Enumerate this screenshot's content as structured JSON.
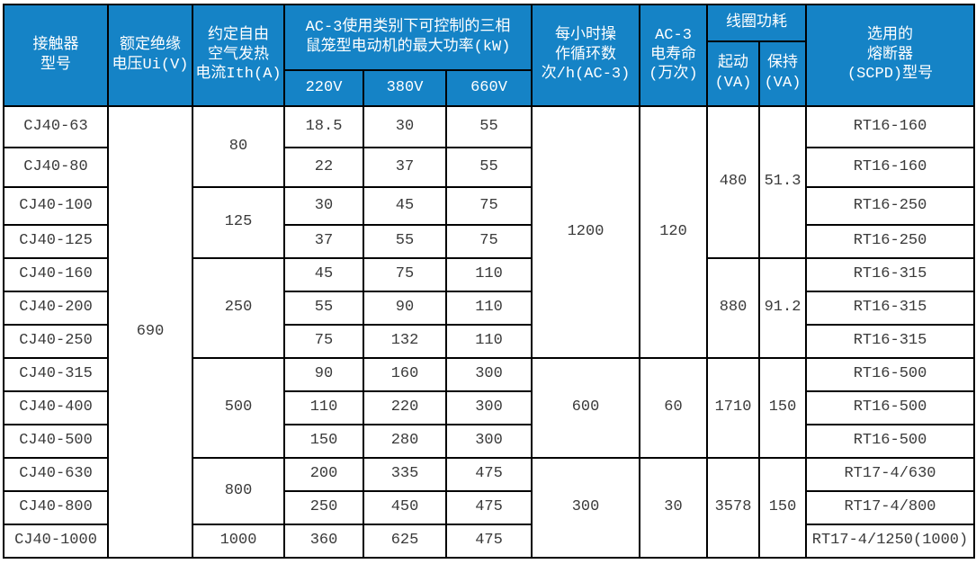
{
  "colors": {
    "header_bg": "#1583c6",
    "header_text": "#ffffff",
    "body_text": "#3a3a3a",
    "border": "#000000"
  },
  "table": {
    "group_headers": {
      "ac3_power": "AC-3使用类别下可控制的三相\n鼠笼型电动机的最大功率(kW)",
      "coil_power": "线圈功耗"
    },
    "columns": [
      {
        "id": "model",
        "header": "接触器\n型号",
        "cells": [
          {
            "value": "CJ40-63",
            "rowspan": 1
          },
          {
            "value": "CJ40-80",
            "rowspan": 1
          },
          {
            "value": "CJ40-100",
            "rowspan": 1
          },
          {
            "value": "CJ40-125",
            "rowspan": 1
          },
          {
            "value": "CJ40-160",
            "rowspan": 1
          },
          {
            "value": "CJ40-200",
            "rowspan": 1
          },
          {
            "value": "CJ40-250",
            "rowspan": 1
          },
          {
            "value": "CJ40-315",
            "rowspan": 1
          },
          {
            "value": "CJ40-400",
            "rowspan": 1
          },
          {
            "value": "CJ40-500",
            "rowspan": 1
          },
          {
            "value": "CJ40-630",
            "rowspan": 1
          },
          {
            "value": "CJ40-800",
            "rowspan": 1
          },
          {
            "value": "CJ40-1000",
            "rowspan": 1
          }
        ]
      },
      {
        "id": "insulation_voltage",
        "header": "额定绝缘\n电压Ui(V)",
        "cells": [
          {
            "value": "690",
            "rowspan": 13
          }
        ]
      },
      {
        "id": "thermal_current",
        "header": "约定自由\n空气发热\n电流Ith(A)",
        "cells": [
          {
            "value": "80",
            "rowspan": 2
          },
          {
            "value": "125",
            "rowspan": 2
          },
          {
            "value": "250",
            "rowspan": 3
          },
          {
            "value": "500",
            "rowspan": 3
          },
          {
            "value": "800",
            "rowspan": 2
          },
          {
            "value": "1000",
            "rowspan": 1
          }
        ]
      },
      {
        "id": "p220",
        "header": "220V",
        "cells": [
          {
            "value": "18.5",
            "rowspan": 1
          },
          {
            "value": "22",
            "rowspan": 1
          },
          {
            "value": "30",
            "rowspan": 1
          },
          {
            "value": "37",
            "rowspan": 1
          },
          {
            "value": "45",
            "rowspan": 1
          },
          {
            "value": "55",
            "rowspan": 1
          },
          {
            "value": "75",
            "rowspan": 1
          },
          {
            "value": "90",
            "rowspan": 1
          },
          {
            "value": "110",
            "rowspan": 1
          },
          {
            "value": "150",
            "rowspan": 1
          },
          {
            "value": "200",
            "rowspan": 1
          },
          {
            "value": "250",
            "rowspan": 1
          },
          {
            "value": "360",
            "rowspan": 1
          }
        ]
      },
      {
        "id": "p380",
        "header": "380V",
        "cells": [
          {
            "value": "30",
            "rowspan": 1
          },
          {
            "value": "37",
            "rowspan": 1
          },
          {
            "value": "45",
            "rowspan": 1
          },
          {
            "value": "55",
            "rowspan": 1
          },
          {
            "value": "75",
            "rowspan": 1
          },
          {
            "value": "90",
            "rowspan": 1
          },
          {
            "value": "132",
            "rowspan": 1
          },
          {
            "value": "160",
            "rowspan": 1
          },
          {
            "value": "220",
            "rowspan": 1
          },
          {
            "value": "280",
            "rowspan": 1
          },
          {
            "value": "335",
            "rowspan": 1
          },
          {
            "value": "450",
            "rowspan": 1
          },
          {
            "value": "625",
            "rowspan": 1
          }
        ]
      },
      {
        "id": "p660",
        "header": "660V",
        "cells": [
          {
            "value": "55",
            "rowspan": 1
          },
          {
            "value": "55",
            "rowspan": 1
          },
          {
            "value": "75",
            "rowspan": 1
          },
          {
            "value": "75",
            "rowspan": 1
          },
          {
            "value": "110",
            "rowspan": 1
          },
          {
            "value": "110",
            "rowspan": 1
          },
          {
            "value": "110",
            "rowspan": 1
          },
          {
            "value": "300",
            "rowspan": 1
          },
          {
            "value": "300",
            "rowspan": 1
          },
          {
            "value": "300",
            "rowspan": 1
          },
          {
            "value": "475",
            "rowspan": 1
          },
          {
            "value": "475",
            "rowspan": 1
          },
          {
            "value": "475",
            "rowspan": 1
          }
        ]
      },
      {
        "id": "cycles",
        "header": "每小时操\n作循环数\n次/h(AC-3)",
        "cells": [
          {
            "value": "1200",
            "rowspan": 7
          },
          {
            "value": "600",
            "rowspan": 3
          },
          {
            "value": "300",
            "rowspan": 3
          }
        ]
      },
      {
        "id": "life",
        "header": "AC-3\n电寿命\n(万次)",
        "cells": [
          {
            "value": "120",
            "rowspan": 7
          },
          {
            "value": "60",
            "rowspan": 3
          },
          {
            "value": "30",
            "rowspan": 3
          }
        ]
      },
      {
        "id": "start_va",
        "header": "起动\n(VA)",
        "cells": [
          {
            "value": "480",
            "rowspan": 4
          },
          {
            "value": "880",
            "rowspan": 3
          },
          {
            "value": "1710",
            "rowspan": 3
          },
          {
            "value": "3578",
            "rowspan": 3
          }
        ]
      },
      {
        "id": "hold_va",
        "header": "保持\n(VA)",
        "cells": [
          {
            "value": "51.3",
            "rowspan": 4
          },
          {
            "value": "91.2",
            "rowspan": 3
          },
          {
            "value": "150",
            "rowspan": 3
          },
          {
            "value": "150",
            "rowspan": 3
          }
        ]
      },
      {
        "id": "fuse",
        "header": "选用的\n熔断器\n(SCPD)型号",
        "cells": [
          {
            "value": "RT16-160",
            "rowspan": 1
          },
          {
            "value": "RT16-160",
            "rowspan": 1
          },
          {
            "value": "RT16-250",
            "rowspan": 1
          },
          {
            "value": "RT16-250",
            "rowspan": 1
          },
          {
            "value": "RT16-315",
            "rowspan": 1
          },
          {
            "value": "RT16-315",
            "rowspan": 1
          },
          {
            "value": "RT16-315",
            "rowspan": 1
          },
          {
            "value": "RT16-500",
            "rowspan": 1
          },
          {
            "value": "RT16-500",
            "rowspan": 1
          },
          {
            "value": "RT16-500",
            "rowspan": 1
          },
          {
            "value": "RT17-4/630",
            "rowspan": 1
          },
          {
            "value": "RT17-4/800",
            "rowspan": 1
          },
          {
            "value": "RT17-4/1250(1000)",
            "rowspan": 1
          }
        ]
      }
    ]
  }
}
